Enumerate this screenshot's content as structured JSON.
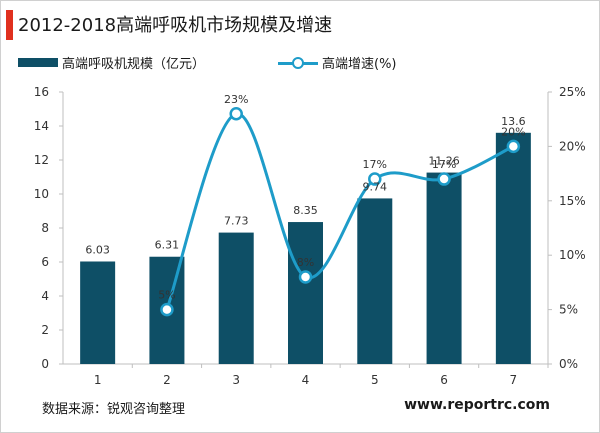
{
  "title": "2012-2018高端呼吸机市场规模及增速",
  "legend": {
    "bar_label": "高端呼吸机规模（亿元）",
    "line_label": "高端增速(%)"
  },
  "footer": {
    "source": "数据来源：锐观咨询整理",
    "website": "www.reportrc.com"
  },
  "colors": {
    "accent": "#e0301e",
    "bar": "#0e4f66",
    "line": "#1e9cc9"
  },
  "chart_data": {
    "type": "bar",
    "categories": [
      "1",
      "2",
      "3",
      "4",
      "5",
      "6",
      "7"
    ],
    "series": [
      {
        "name": "高端呼吸机规模（亿元）",
        "type": "bar",
        "axis": "left",
        "values": [
          6.03,
          6.31,
          7.73,
          8.35,
          9.74,
          11.26,
          13.6
        ],
        "labels": [
          "6.03",
          "6.31",
          "7.73",
          "8.35",
          "9.74",
          "11.26",
          "13.6"
        ]
      },
      {
        "name": "高端增速(%)",
        "type": "line",
        "axis": "right",
        "values": [
          null,
          5,
          23,
          8,
          17,
          17,
          20
        ],
        "labels": [
          "",
          "5%",
          "23%",
          "8%",
          "17%",
          "17%",
          "20%"
        ]
      }
    ],
    "y_left": {
      "min": 0,
      "max": 16,
      "ticks": [
        "0",
        "2",
        "4",
        "6",
        "8",
        "10",
        "12",
        "14",
        "16"
      ]
    },
    "y_right": {
      "min": 0,
      "max": 25,
      "ticks": [
        "0%",
        "5%",
        "10%",
        "15%",
        "20%",
        "25%"
      ]
    },
    "grid": false,
    "legend_position": "top-left"
  }
}
